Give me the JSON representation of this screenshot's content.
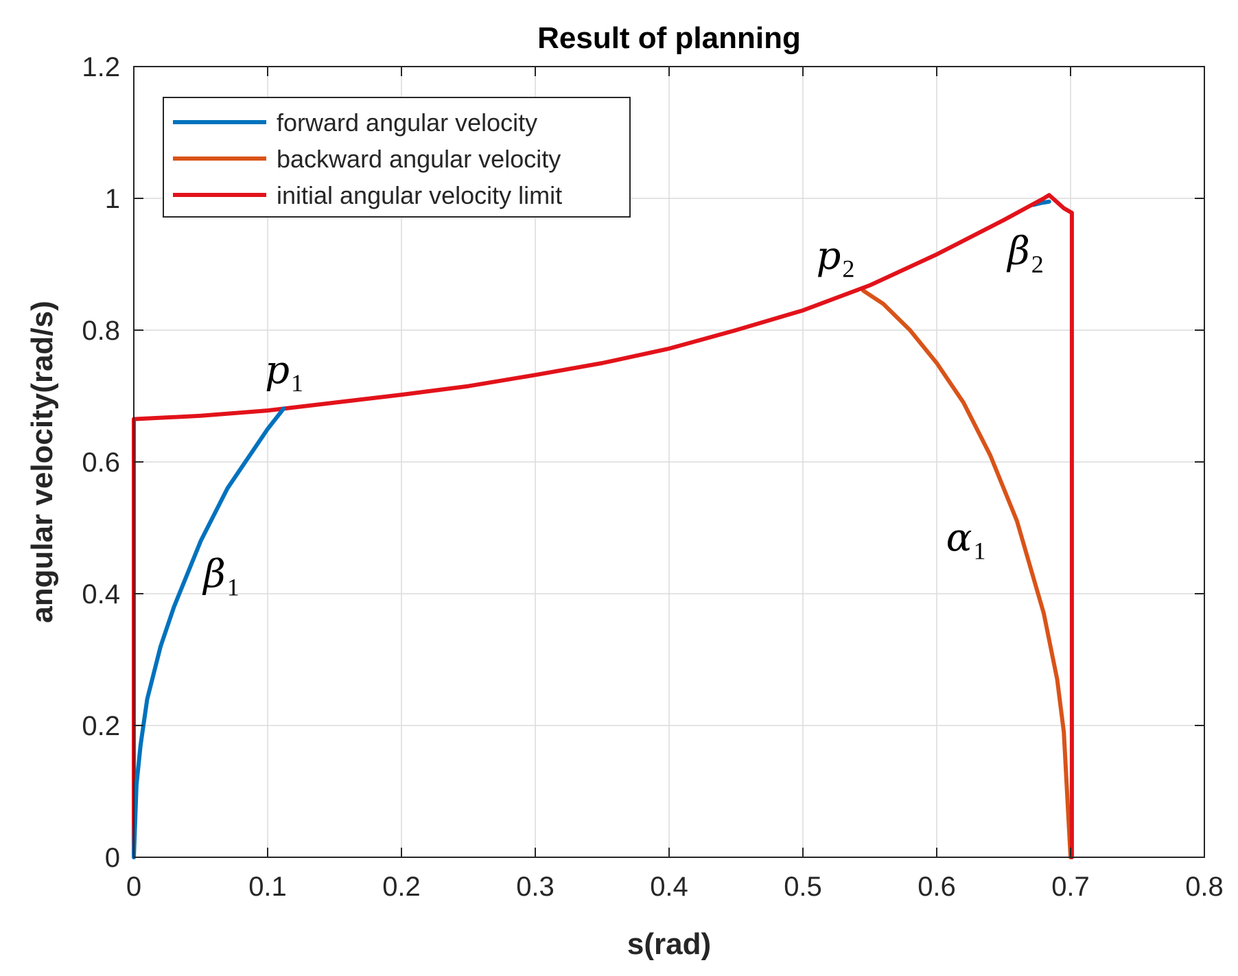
{
  "chart_data": {
    "type": "line",
    "title": "Result of planning",
    "xlabel": "s(rad)",
    "ylabel": "angular velocity(rad/s)",
    "xlim": [
      0,
      0.8
    ],
    "ylim": [
      0,
      1.2
    ],
    "x_ticks": [
      0,
      0.1,
      0.2,
      0.3,
      0.4,
      0.5,
      0.6,
      0.7,
      0.8
    ],
    "x_tick_labels": [
      "0",
      "0.1",
      "0.2",
      "0.3",
      "0.4",
      "0.5",
      "0.6",
      "0.7",
      "0.8"
    ],
    "y_ticks": [
      0,
      0.2,
      0.4,
      0.6,
      0.8,
      1.0,
      1.2
    ],
    "y_tick_labels": [
      "0",
      "0.2",
      "0.4",
      "0.6",
      "0.8",
      "1",
      "1.2"
    ],
    "grid": true,
    "legend_position": "top-left",
    "series": [
      {
        "name": "forward angular velocity",
        "color": "#0072bd",
        "x": [
          0,
          0.002,
          0.005,
          0.01,
          0.02,
          0.03,
          0.04,
          0.05,
          0.06,
          0.07,
          0.08,
          0.09,
          0.1,
          0.112
        ],
        "y": [
          0,
          0.11,
          0.17,
          0.24,
          0.32,
          0.38,
          0.43,
          0.48,
          0.52,
          0.56,
          0.59,
          0.62,
          0.65,
          0.681
        ]
      },
      {
        "name": "forward angular velocity",
        "color": "#0072bd",
        "x": [
          0.672,
          0.678,
          0.684
        ],
        "y": [
          0.99,
          0.993,
          0.995
        ]
      },
      {
        "name": "backward angular velocity",
        "color": "#d95319",
        "x": [
          0.545,
          0.56,
          0.58,
          0.6,
          0.62,
          0.64,
          0.66,
          0.68,
          0.69,
          0.695,
          0.7
        ],
        "y": [
          0.86,
          0.84,
          0.8,
          0.75,
          0.69,
          0.61,
          0.51,
          0.37,
          0.27,
          0.19,
          0.0
        ]
      },
      {
        "name": "initial angular velocity limit",
        "color": "#e2121a",
        "x": [
          0,
          0,
          0.05,
          0.1,
          0.15,
          0.2,
          0.25,
          0.3,
          0.35,
          0.4,
          0.45,
          0.5,
          0.55,
          0.6,
          0.65,
          0.68,
          0.684,
          0.695,
          0.701,
          0.701
        ],
        "y": [
          0,
          0.665,
          0.67,
          0.678,
          0.69,
          0.702,
          0.715,
          0.732,
          0.75,
          0.772,
          0.8,
          0.83,
          0.868,
          0.915,
          0.967,
          1.0,
          1.005,
          0.985,
          0.978,
          0.0
        ]
      }
    ],
    "annotations": [
      {
        "main": "p",
        "sub": "1",
        "x": 0.098,
        "y": 0.72,
        "style": "italic"
      },
      {
        "main": "p",
        "sub": "2",
        "x": 0.51,
        "y": 0.893,
        "style": "italic"
      },
      {
        "main": "β",
        "sub": "1",
        "x": 0.052,
        "y": 0.41,
        "style": "italic"
      },
      {
        "main": "β",
        "sub": "2",
        "x": 0.653,
        "y": 0.9,
        "style": "italic"
      },
      {
        "main": "α",
        "sub": "1",
        "x": 0.607,
        "y": 0.465,
        "style": "italic"
      }
    ]
  }
}
